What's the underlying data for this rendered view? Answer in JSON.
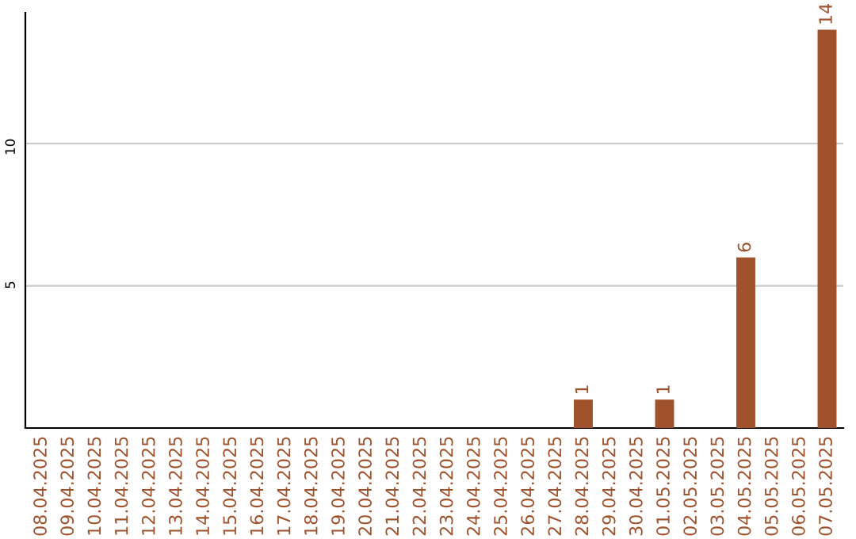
{
  "chart_data": {
    "type": "bar",
    "categories": [
      "08.04.2025",
      "09.04.2025",
      "10.04.2025",
      "11.04.2025",
      "12.04.2025",
      "13.04.2025",
      "14.04.2025",
      "15.04.2025",
      "16.04.2025",
      "17.04.2025",
      "18.04.2025",
      "19.04.2025",
      "20.04.2025",
      "21.04.2025",
      "22.04.2025",
      "23.04.2025",
      "24.04.2025",
      "25.04.2025",
      "26.04.2025",
      "27.04.2025",
      "28.04.2025",
      "29.04.2025",
      "30.04.2025",
      "01.05.2025",
      "02.05.2025",
      "03.05.2025",
      "04.05.2025",
      "05.05.2025",
      "06.05.2025",
      "07.05.2025"
    ],
    "values": [
      0,
      0,
      0,
      0,
      0,
      0,
      0,
      0,
      0,
      0,
      0,
      0,
      0,
      0,
      0,
      0,
      0,
      0,
      0,
      0,
      1,
      0,
      0,
      1,
      0,
      0,
      6,
      0,
      0,
      14
    ],
    "value_labels": [
      null,
      null,
      null,
      null,
      null,
      null,
      null,
      null,
      null,
      null,
      null,
      null,
      null,
      null,
      null,
      null,
      null,
      null,
      null,
      null,
      "1",
      null,
      null,
      "1",
      null,
      null,
      "6",
      null,
      null,
      "14"
    ],
    "color": "#a0522d",
    "ylim": [
      0,
      14.6
    ],
    "yticks": [
      5,
      10
    ],
    "grid": "y"
  }
}
